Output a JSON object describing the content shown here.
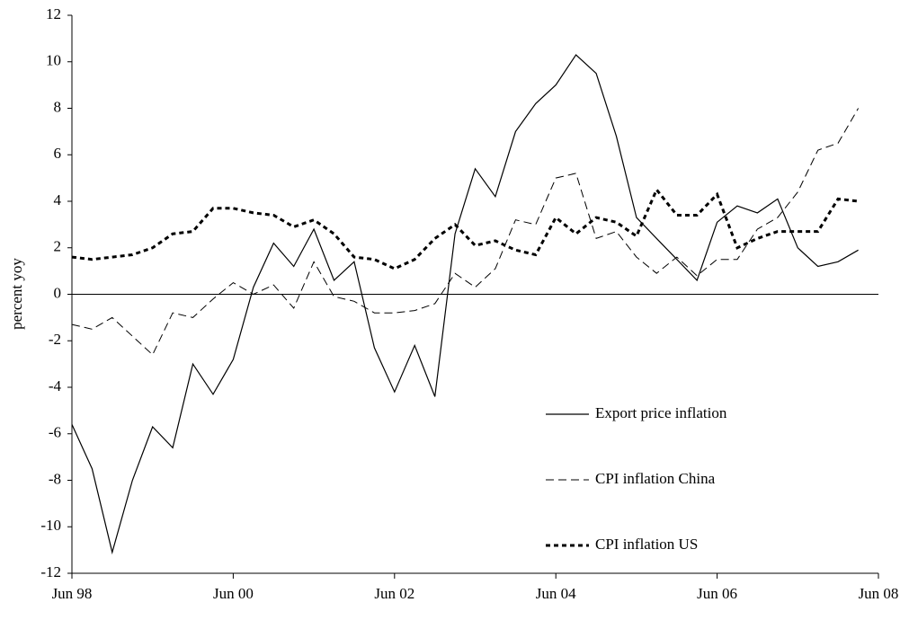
{
  "chart_data": {
    "type": "line",
    "y_label": "percent yoy",
    "x": [
      1998.5,
      1998.75,
      1999,
      1999.25,
      1999.5,
      1999.75,
      2000,
      2000.25,
      2000.5,
      2000.75,
      2001,
      2001.25,
      2001.5,
      2001.75,
      2002,
      2002.25,
      2002.5,
      2002.75,
      2003,
      2003.25,
      2003.5,
      2003.75,
      2004,
      2004.25,
      2004.5,
      2004.75,
      2005,
      2005.25,
      2005.5,
      2005.75,
      2006,
      2006.25,
      2006.5,
      2006.75,
      2007,
      2007.25,
      2007.5,
      2007.75,
      2008,
      2008.25
    ],
    "series": [
      {
        "name": "Export price inflation",
        "color": "#000000",
        "dash": "solid",
        "values": [
          -5.6,
          -7.5,
          -11.1,
          -8.0,
          -5.7,
          -6.6,
          -3.0,
          -4.3,
          -2.8,
          0.3,
          2.2,
          1.2,
          2.8,
          0.6,
          1.4,
          -2.3,
          -4.2,
          -2.2,
          -4.4,
          2.6,
          5.4,
          4.2,
          7.0,
          8.2,
          9.0,
          10.3,
          9.5,
          6.8,
          3.3,
          2.4,
          1.5,
          0.6,
          3.1,
          3.8,
          3.5,
          4.1,
          2.0,
          1.2,
          1.4,
          1.9
        ]
      },
      {
        "name": "CPI inflation China",
        "color": "#000000",
        "dash": "dashed",
        "values": [
          -1.3,
          -1.5,
          -1.0,
          -1.8,
          -2.6,
          -0.8,
          -1.0,
          -0.2,
          0.5,
          0.0,
          0.4,
          -0.6,
          1.4,
          -0.1,
          -0.3,
          -0.8,
          -0.8,
          -0.7,
          -0.4,
          0.9,
          0.3,
          1.1,
          3.2,
          3.0,
          5.0,
          5.2,
          2.4,
          2.7,
          1.6,
          0.9,
          1.6,
          0.8,
          1.5,
          1.5,
          2.8,
          3.3,
          4.4,
          6.2,
          6.5,
          8.0
        ]
      },
      {
        "name": "CPI inflation US",
        "color": "#000000",
        "dash": "dotted",
        "values": [
          1.6,
          1.5,
          1.6,
          1.7,
          2.0,
          2.6,
          2.7,
          3.7,
          3.7,
          3.5,
          3.4,
          2.9,
          3.2,
          2.6,
          1.6,
          1.5,
          1.1,
          1.5,
          2.4,
          3.0,
          2.1,
          2.3,
          1.9,
          1.7,
          3.3,
          2.6,
          3.3,
          3.1,
          2.5,
          4.5,
          3.4,
          3.4,
          4.3,
          2.0,
          2.4,
          2.7,
          2.7,
          2.7,
          4.1,
          4.0
        ]
      }
    ],
    "xlim": [
      1998.5,
      2008.5
    ],
    "xticks": [
      {
        "value": 1998.5,
        "label": "Jun 98"
      },
      {
        "value": 2000.5,
        "label": "Jun 00"
      },
      {
        "value": 2002.5,
        "label": "Jun 02"
      },
      {
        "value": 2004.5,
        "label": "Jun 04"
      },
      {
        "value": 2006.5,
        "label": "Jun 06"
      },
      {
        "value": 2008.5,
        "label": "Jun 08"
      }
    ],
    "ylim": [
      -12,
      12
    ],
    "yticks": [
      -12,
      -10,
      -8,
      -6,
      -4,
      -2,
      0,
      2,
      4,
      6,
      8,
      10,
      12
    ],
    "grid": false,
    "legend": "lower right"
  }
}
